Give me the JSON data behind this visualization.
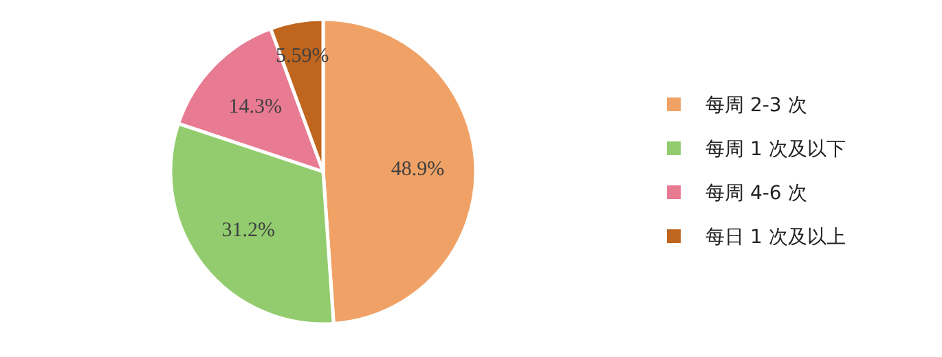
{
  "chart_data": {
    "type": "pie",
    "categories": [
      "每周 2-3 次",
      "每周 1 次及以下",
      "每周 4-6 次",
      "每日 1 次及以上"
    ],
    "values": [
      48.9,
      31.2,
      14.3,
      5.59
    ],
    "value_labels": [
      "48.9%",
      "31.2%",
      "14.3%",
      "5.59%"
    ],
    "colors": [
      "#f0a266",
      "#92cc6e",
      "#e87a92",
      "#c0651e"
    ],
    "legend": "right"
  }
}
